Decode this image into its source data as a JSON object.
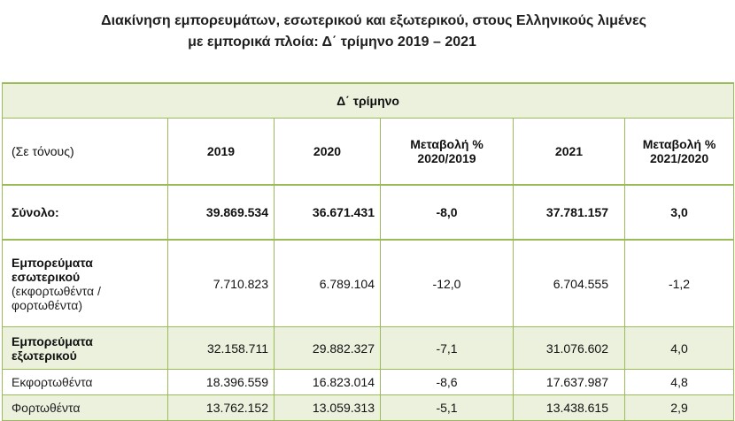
{
  "title": {
    "line1": "Διακίνηση εμπορευμάτων, εσωτερικού και εξωτερικού, στους Ελληνικούς λιμένες",
    "line2": "με εμπορικά πλοία: Δ΄ τρίμηνο 2019 – 2021"
  },
  "table": {
    "quarter_label": "Δ΄ τρίμηνο",
    "unit_label": "(Σε τόνους)",
    "headers": {
      "y2019": "2019",
      "y2020": "2020",
      "change_2020_2019_line1": "Μεταβολή %",
      "change_2020_2019_line2": "2020/2019",
      "y2021": "2021",
      "change_2021_2020_line1": "Μεταβολή %",
      "change_2021_2020_line2": "2021/2020"
    },
    "rows": [
      {
        "label": "Σύνολο:",
        "v2019": "39.869.534",
        "v2020": "36.671.431",
        "ch1": "-8,0",
        "v2021": "37.781.157",
        "ch2": "3,0"
      },
      {
        "label_line1": "Εμπορεύματα",
        "label_line2": "εσωτερικού",
        "label_line3": "(εκφορτωθέντα /",
        "label_line4": "φορτωθέντα)",
        "v2019": "7.710.823",
        "v2020": "6.789.104",
        "ch1": "-12,0",
        "v2021": "6.704.555",
        "ch2": "-1,2"
      },
      {
        "label_line1": "Εμπορεύματα",
        "label_line2": "εξωτερικού",
        "v2019": "32.158.711",
        "v2020": "29.882.327",
        "ch1": "-7,1",
        "v2021": "31.076.602",
        "ch2": "4,0"
      },
      {
        "label": "Εκφορτωθέντα",
        "v2019": "18.396.559",
        "v2020": "16.823.014",
        "ch1": "-8,6",
        "v2021": "17.637.987",
        "ch2": "4,8"
      },
      {
        "label": "Φορτωθέντα",
        "v2019": "13.762.152",
        "v2020": "13.059.313",
        "ch1": "-5,1",
        "v2021": "13.438.615",
        "ch2": "2,9"
      }
    ]
  },
  "colors": {
    "border": "#9bbb59",
    "shade": "#ebf1dd"
  }
}
